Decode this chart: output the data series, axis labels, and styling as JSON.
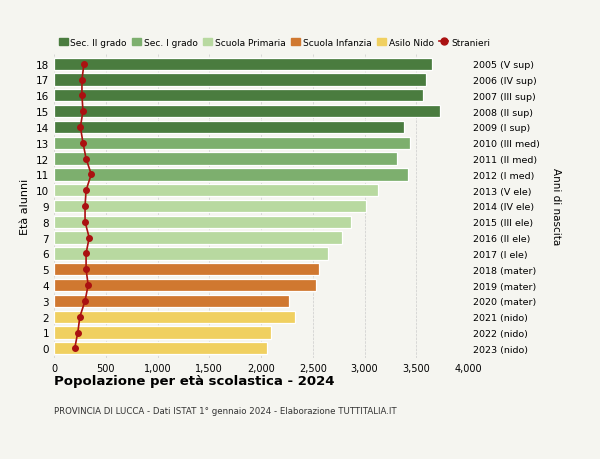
{
  "ages": [
    18,
    17,
    16,
    15,
    14,
    13,
    12,
    11,
    10,
    9,
    8,
    7,
    6,
    5,
    4,
    3,
    2,
    1,
    0
  ],
  "bar_values": [
    3650,
    3590,
    3570,
    3730,
    3380,
    3440,
    3310,
    3420,
    3130,
    3010,
    2870,
    2780,
    2650,
    2560,
    2530,
    2270,
    2330,
    2100,
    2060
  ],
  "stranieri_values": [
    290,
    270,
    270,
    280,
    255,
    280,
    310,
    360,
    310,
    300,
    300,
    340,
    310,
    310,
    330,
    300,
    250,
    230,
    200
  ],
  "right_labels": [
    "2005 (V sup)",
    "2006 (IV sup)",
    "2007 (III sup)",
    "2008 (II sup)",
    "2009 (I sup)",
    "2010 (III med)",
    "2011 (II med)",
    "2012 (I med)",
    "2013 (V ele)",
    "2014 (IV ele)",
    "2015 (III ele)",
    "2016 (II ele)",
    "2017 (I ele)",
    "2018 (mater)",
    "2019 (mater)",
    "2020 (mater)",
    "2021 (nido)",
    "2022 (nido)",
    "2023 (nido)"
  ],
  "bar_colors": [
    "#4a7c3f",
    "#4a7c3f",
    "#4a7c3f",
    "#4a7c3f",
    "#4a7c3f",
    "#7daf6e",
    "#7daf6e",
    "#7daf6e",
    "#b8d9a0",
    "#b8d9a0",
    "#b8d9a0",
    "#b8d9a0",
    "#b8d9a0",
    "#d07830",
    "#d07830",
    "#d07830",
    "#f0d060",
    "#f0d060",
    "#f0d060"
  ],
  "legend_labels": [
    "Sec. II grado",
    "Sec. I grado",
    "Scuola Primaria",
    "Scuola Infanzia",
    "Asilo Nido",
    "Stranieri"
  ],
  "legend_colors": [
    "#4a7c3f",
    "#7daf6e",
    "#b8d9a0",
    "#d07830",
    "#f0d060",
    "#aa1111"
  ],
  "ylabel_left": "Età alunni",
  "ylabel_right": "Anni di nascita",
  "title": "Popolazione per età scolastica - 2024",
  "subtitle": "PROVINCIA DI LUCCA - Dati ISTAT 1° gennaio 2024 - Elaborazione TUTTITALIA.IT",
  "xlim": [
    0,
    4000
  ],
  "xticks": [
    0,
    500,
    1000,
    1500,
    2000,
    2500,
    3000,
    3500,
    4000
  ],
  "xtick_labels": [
    "0",
    "500",
    "1,000",
    "1,500",
    "2,000",
    "2,500",
    "3,000",
    "3,500",
    "4,000"
  ],
  "background_color": "#f5f5f0",
  "stranieri_color": "#aa1111",
  "bar_height": 0.78
}
